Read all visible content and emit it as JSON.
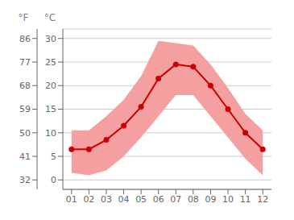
{
  "chart_data": {
    "type": "line",
    "x": [
      1,
      2,
      3,
      4,
      5,
      6,
      7,
      8,
      9,
      10,
      11,
      12
    ],
    "xlim": [
      0.5,
      12.5
    ],
    "xticks": [
      {
        "value": 1,
        "label": "01"
      },
      {
        "value": 2,
        "label": "02"
      },
      {
        "value": 3,
        "label": "03"
      },
      {
        "value": 4,
        "label": "04"
      },
      {
        "value": 5,
        "label": "05"
      },
      {
        "value": 6,
        "label": "06"
      },
      {
        "value": 7,
        "label": "07"
      },
      {
        "value": 8,
        "label": "08"
      },
      {
        "value": 9,
        "label": "09"
      },
      {
        "value": 10,
        "label": "10"
      },
      {
        "value": 11,
        "label": "11"
      },
      {
        "value": 12,
        "label": "12"
      }
    ],
    "ylabel": "°C",
    "ylim": [
      -2,
      32
    ],
    "yticks": [
      0,
      5,
      10,
      15,
      20,
      25,
      30
    ],
    "y2label": "°F",
    "y2lim": [
      28.4,
      89.6
    ],
    "y2ticks": [
      32,
      41,
      50,
      59,
      68,
      77,
      86
    ],
    "grid": true,
    "series": [
      {
        "type": "area",
        "lower": [
          1.5,
          1.0,
          2.0,
          5.0,
          9.0,
          13.5,
          18.0,
          18.0,
          13.5,
          9.0,
          4.5,
          1.0
        ],
        "upper": [
          10.5,
          10.5,
          13.5,
          17.0,
          22.0,
          29.5,
          29.0,
          28.5,
          24.5,
          19.5,
          14.0,
          10.5
        ],
        "color": "#f5a0a0"
      },
      {
        "type": "line",
        "values": [
          6.5,
          6.5,
          8.5,
          11.5,
          15.5,
          21.5,
          24.5,
          24.0,
          20.0,
          15.0,
          10.0,
          6.5
        ],
        "color": "#cc0000",
        "marker": "o"
      }
    ]
  }
}
